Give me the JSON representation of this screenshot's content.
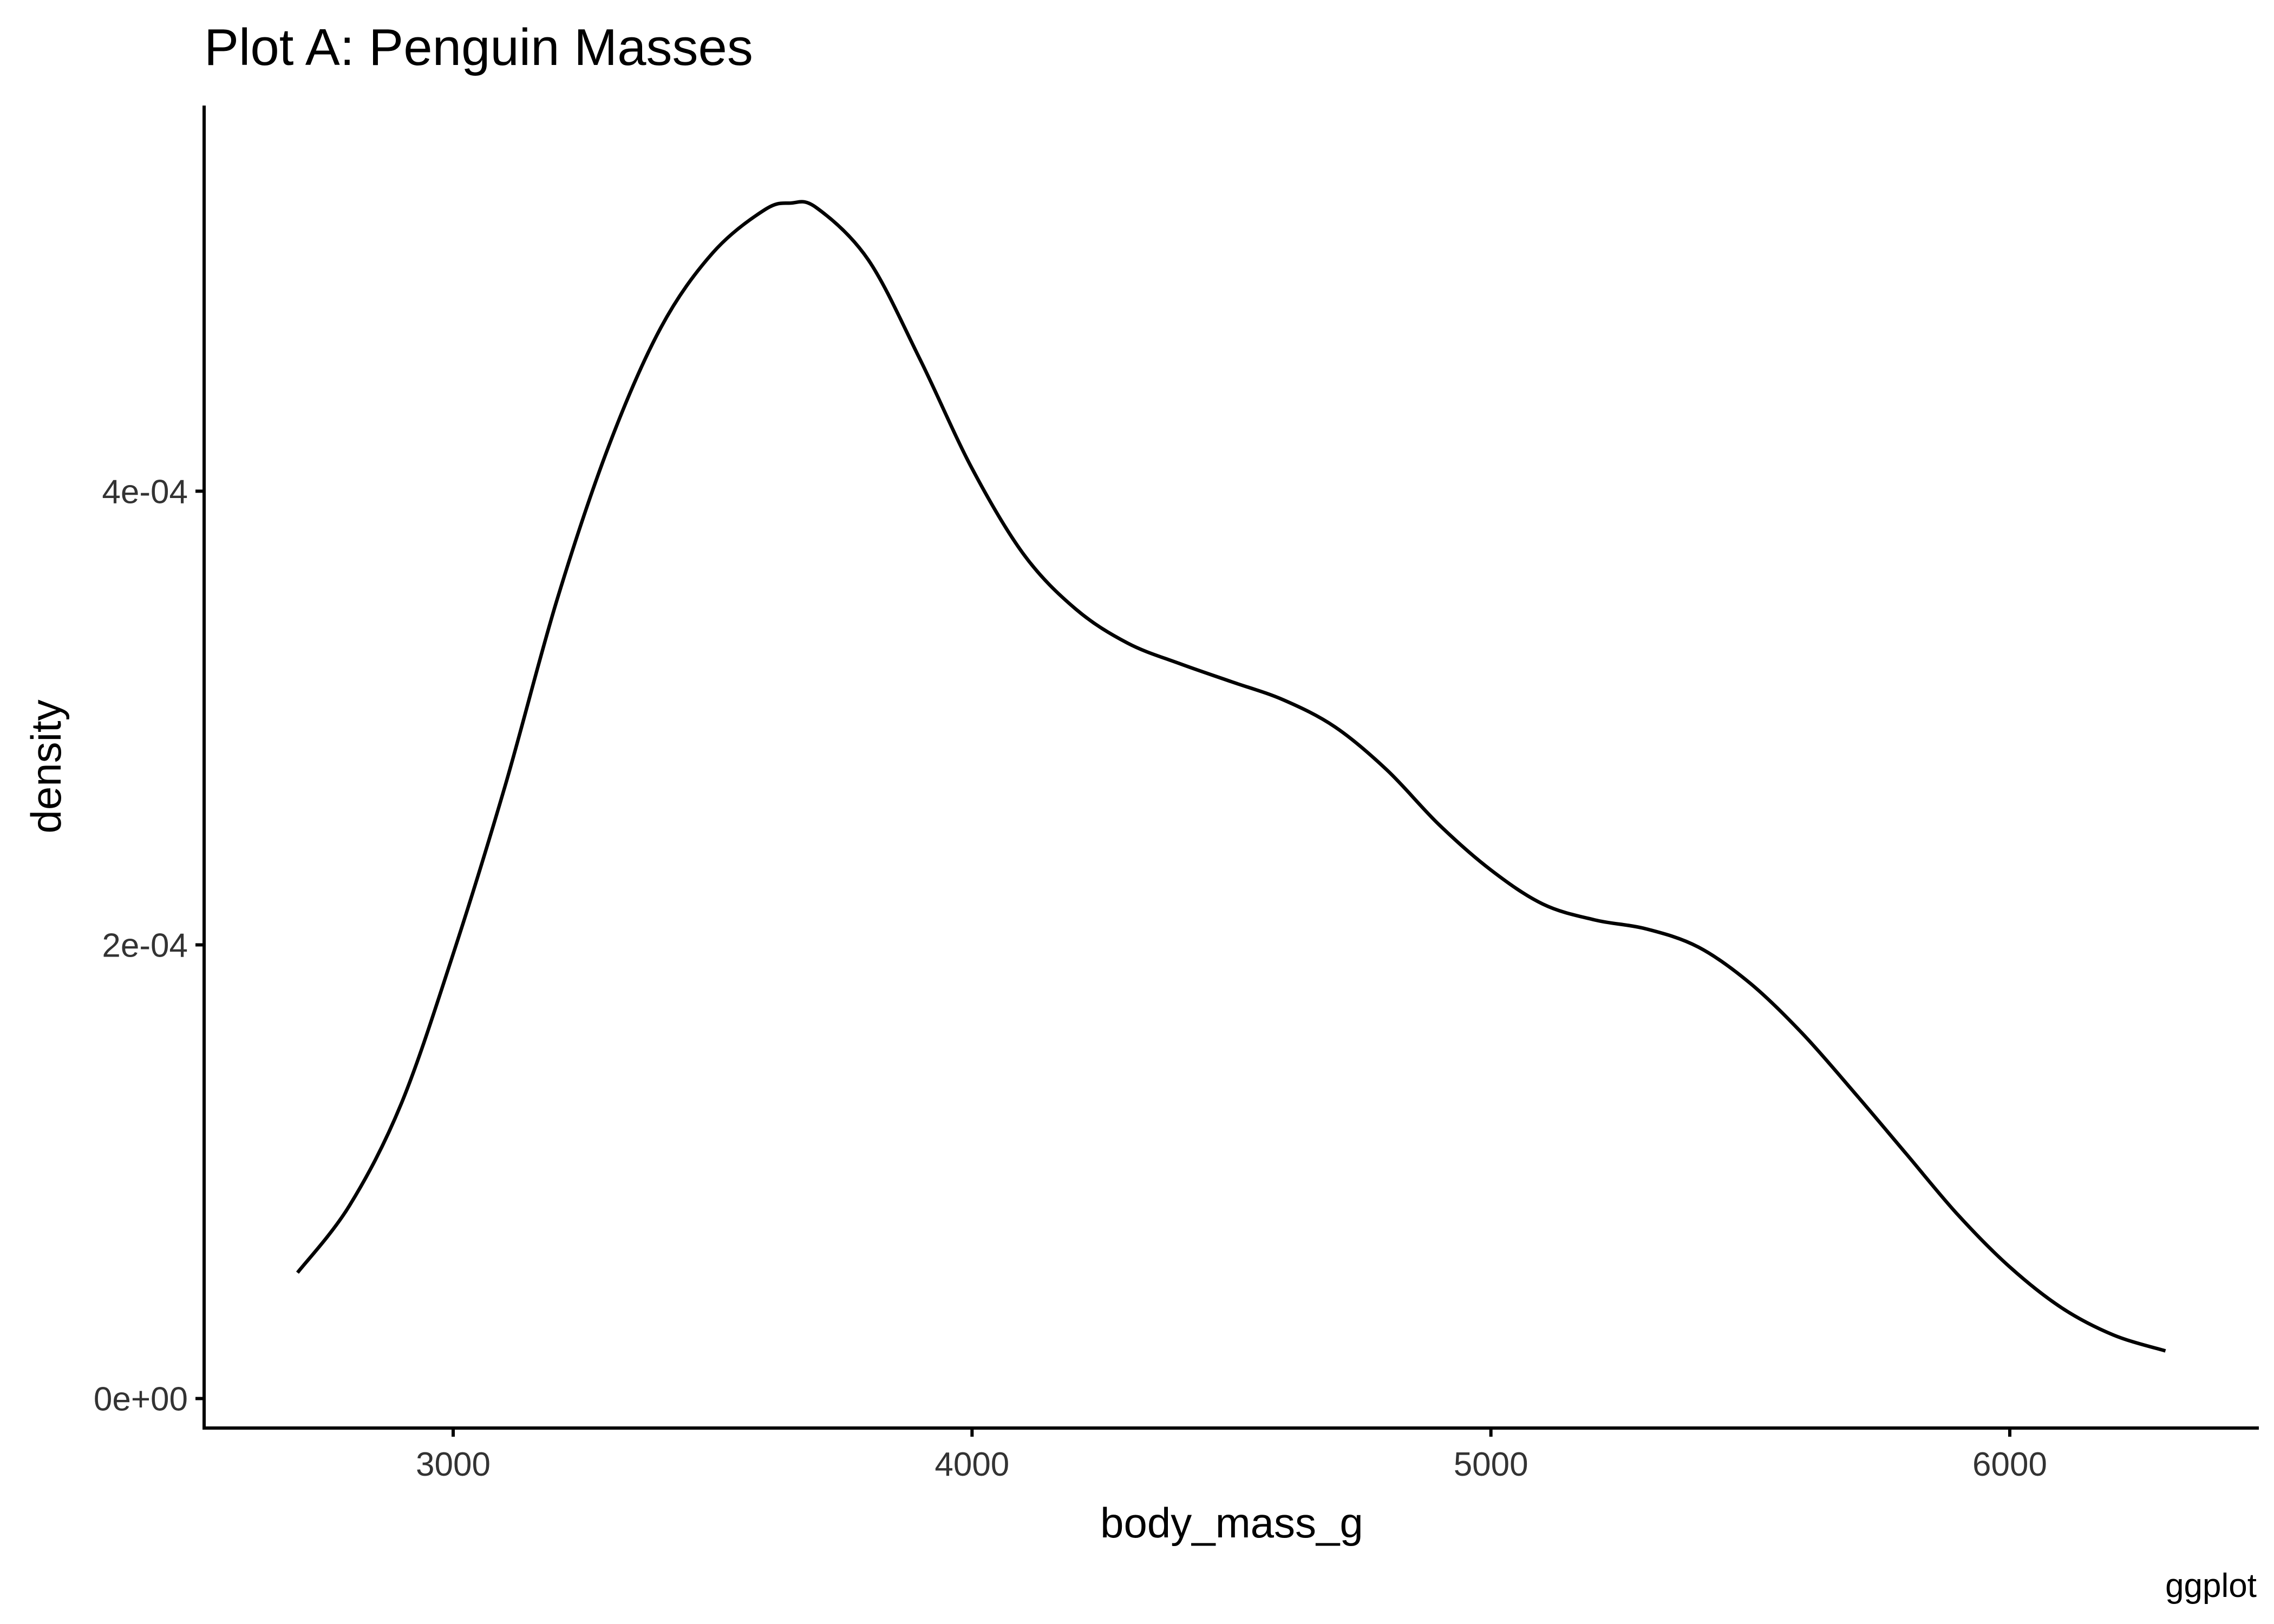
{
  "chart_data": {
    "type": "line",
    "title": "Plot A: Penguin Masses",
    "xlabel": "body_mass_g",
    "ylabel": "density",
    "caption": "ggplot",
    "xlim": [
      2520,
      6480
    ],
    "ylim": [
      -1.3e-05,
      0.00057
    ],
    "x_ticks": [
      3000,
      4000,
      5000,
      6000
    ],
    "x_tick_labels": [
      "3000",
      "4000",
      "5000",
      "6000"
    ],
    "y_ticks": [
      0,
      0.0002,
      0.0004
    ],
    "y_tick_labels": [
      "0e+00",
      "2e-04",
      "4e-04"
    ],
    "grid": false,
    "legend": "none",
    "line_color": "#000000",
    "series": [
      {
        "x": [
          2700,
          2800,
          2900,
          3000,
          3100,
          3200,
          3300,
          3400,
          3500,
          3600,
          3650,
          3700,
          3800,
          3900,
          4000,
          4100,
          4200,
          4300,
          4400,
          4500,
          4600,
          4700,
          4800,
          4900,
          5000,
          5100,
          5200,
          5300,
          5400,
          5500,
          5600,
          5700,
          5800,
          5900,
          6000,
          6100,
          6200,
          6300
        ],
        "y": [
          5.55e-05,
          8.5e-05,
          0.00013,
          0.000196,
          0.00027,
          0.000352,
          0.00042,
          0.000472,
          0.000505,
          0.000524,
          0.000527,
          0.000525,
          0.000502,
          0.000458,
          0.00041,
          0.000372,
          0.000348,
          0.000333,
          0.000324,
          0.000316,
          0.000308,
          0.000296,
          0.000277,
          0.000253,
          0.000233,
          0.000218,
          0.000211,
          0.000207,
          0.000199,
          0.000183,
          0.000161,
          0.000135,
          0.000108,
          8.1e-05,
          5.8e-05,
          4e-05,
          2.8e-05,
          2.1e-05
        ]
      }
    ]
  }
}
